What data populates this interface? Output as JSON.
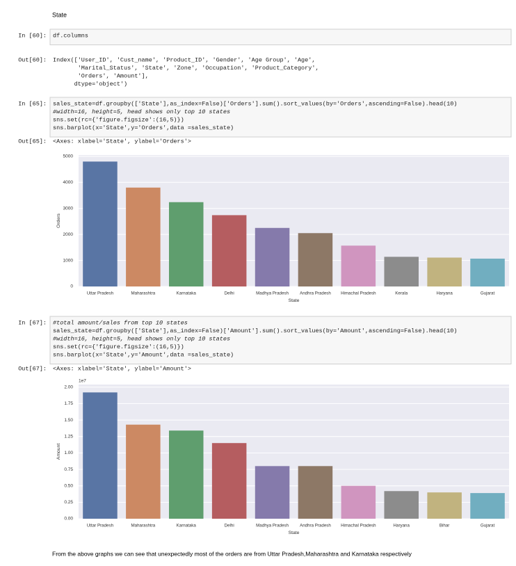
{
  "header": {
    "title": "State"
  },
  "cells": [
    {
      "prompt_in": "In [60]:",
      "code": [
        "df.columns"
      ],
      "prompt_out": "Out[60]:",
      "output": [
        "Index(['User_ID', 'Cust_name', 'Product_ID', 'Gender', 'Age Group', 'Age',",
        "       'Marital_Status', 'State', 'Zone', 'Occupation', 'Product_Category',",
        "       'Orders', 'Amount'],",
        "      dtype='object')"
      ]
    },
    {
      "prompt_in": "In [65]:",
      "code": [
        "sales_state=df.groupby(['State'],as_index=False)['Orders'].sum().sort_values(by='Orders',ascending=False).head(10)",
        "#width=16, height=5, head shows only top 10 states",
        "sns.set(rc={'figure.figsize':(16,5)})",
        "sns.barplot(x='State',y='Orders',data =sales_state)"
      ],
      "prompt_out": "Out[65]:",
      "output": [
        "<Axes: xlabel='State', ylabel='Orders'>"
      ]
    },
    {
      "prompt_in": "In [67]:",
      "code": [
        "#total amount/sales from top 10 states",
        "sales_state=df.groupby(['State'],as_index=False)['Amount'].sum().sort_values(by='Amount',ascending=False).head(10)",
        "#width=16, height=5, head shows only top 10 states",
        "sns.set(rc={'figure.figsize':(16,5)})",
        "sns.barplot(x='State',y='Amount',data =sales_state)"
      ],
      "prompt_out": "Out[67]:",
      "output": [
        "<Axes: xlabel='State', ylabel='Amount'>"
      ]
    }
  ],
  "chart_data": [
    {
      "type": "bar",
      "x_label": "State",
      "y_label": "Orders",
      "categories": [
        "Uttar Pradesh",
        "Maharashtra",
        "Karnataka",
        "Delhi",
        "Madhya Pradesh",
        "Andhra Pradesh",
        "Himachal Pradesh",
        "Kerala",
        "Haryana",
        "Gujarat"
      ],
      "values": [
        4800,
        3800,
        3240,
        2740,
        2250,
        2050,
        1570,
        1140,
        1110,
        1070
      ],
      "colors": [
        "#5975a4",
        "#cc8963",
        "#5f9e6e",
        "#b55d60",
        "#857aab",
        "#8d7866",
        "#d095bf",
        "#8c8c8c",
        "#c1b37f",
        "#71aec0"
      ],
      "ylim": [
        0,
        5050
      ],
      "yticks": [
        0,
        1000,
        2000,
        3000,
        4000,
        5000
      ],
      "grid": true
    },
    {
      "type": "bar",
      "x_label": "State",
      "y_label": "Amount",
      "offset_label": "1e7",
      "categories": [
        "Uttar Pradesh",
        "Maharashtra",
        "Karnataka",
        "Delhi",
        "Madhya Pradesh",
        "Andhra Pradesh",
        "Himachal Pradesh",
        "Haryana",
        "Bihar",
        "Gujarat"
      ],
      "values": [
        19200000,
        14300000,
        13400000,
        11500000,
        8000000,
        8000000,
        5000000,
        4200000,
        4000000,
        3900000
      ],
      "colors": [
        "#5975a4",
        "#cc8963",
        "#5f9e6e",
        "#b55d60",
        "#857aab",
        "#8d7866",
        "#d095bf",
        "#8c8c8c",
        "#c1b37f",
        "#71aec0"
      ],
      "ylim": [
        0,
        20400000
      ],
      "yticks": [
        {
          "value": 0,
          "label": "0.00"
        },
        {
          "value": 2500000,
          "label": "0.25"
        },
        {
          "value": 5000000,
          "label": "0.50"
        },
        {
          "value": 7500000,
          "label": "0.75"
        },
        {
          "value": 10000000,
          "label": "1.00"
        },
        {
          "value": 12500000,
          "label": "1.25"
        },
        {
          "value": 15000000,
          "label": "1.50"
        },
        {
          "value": 17500000,
          "label": "1.75"
        },
        {
          "value": 20000000,
          "label": "2.00"
        }
      ],
      "grid": true
    }
  ],
  "conclusion": "From the above graphs we can see that unexpectedly most of the orders are from Uttar Pradesh,Maharashtra and Karnataka respectively"
}
